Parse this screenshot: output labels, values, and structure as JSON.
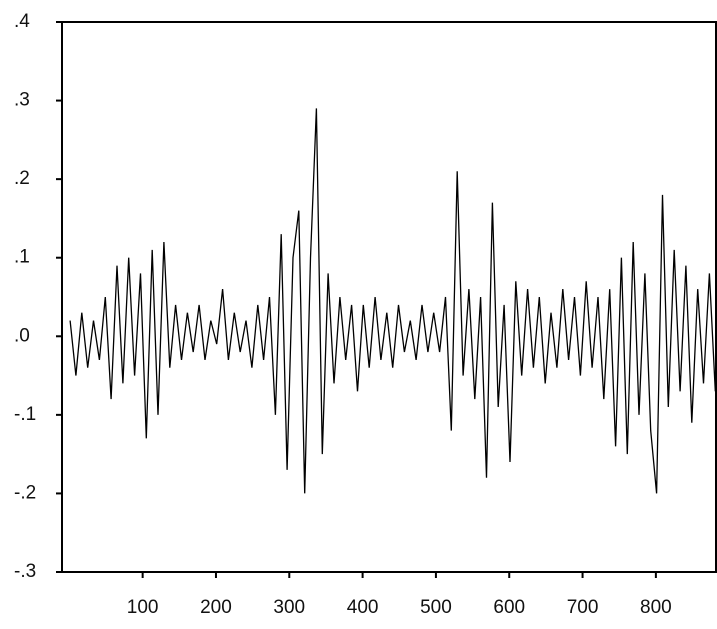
{
  "chart_data": {
    "type": "line",
    "x": [
      1,
      9,
      17,
      25,
      33,
      41,
      49,
      57,
      65,
      73,
      81,
      89,
      97,
      105,
      113,
      121,
      129,
      137,
      145,
      153,
      161,
      169,
      177,
      185,
      193,
      201,
      209,
      217,
      225,
      233,
      241,
      249,
      257,
      265,
      273,
      281,
      289,
      297,
      305,
      313,
      321,
      329,
      337,
      345,
      353,
      361,
      369,
      377,
      385,
      393,
      401,
      409,
      417,
      425,
      433,
      441,
      449,
      457,
      465,
      473,
      481,
      489,
      497,
      505,
      513,
      521,
      529,
      537,
      545,
      553,
      561,
      569,
      577,
      585,
      593,
      601,
      609,
      617,
      625,
      633,
      641,
      649,
      657,
      665,
      673,
      681,
      689,
      697,
      705,
      713,
      721,
      729,
      737,
      745,
      753,
      761,
      769,
      777,
      785,
      793,
      801,
      809,
      817,
      825,
      833,
      841,
      849,
      857,
      865,
      873,
      881
    ],
    "series": [
      {
        "color": "#000000",
        "values": [
          0.02,
          -0.05,
          0.03,
          -0.04,
          0.02,
          -0.03,
          0.05,
          -0.08,
          0.09,
          -0.06,
          0.1,
          -0.05,
          0.08,
          -0.13,
          0.11,
          -0.1,
          0.12,
          -0.04,
          0.04,
          -0.03,
          0.03,
          -0.02,
          0.04,
          -0.03,
          0.02,
          -0.01,
          0.06,
          -0.03,
          0.03,
          -0.02,
          0.02,
          -0.04,
          0.04,
          -0.03,
          0.05,
          -0.1,
          0.13,
          -0.17,
          0.1,
          0.16,
          -0.2,
          0.1,
          0.29,
          -0.15,
          0.08,
          -0.06,
          0.05,
          -0.03,
          0.04,
          -0.07,
          0.04,
          -0.04,
          0.05,
          -0.03,
          0.03,
          -0.04,
          0.04,
          -0.02,
          0.02,
          -0.03,
          0.04,
          -0.02,
          0.03,
          -0.02,
          0.05,
          -0.12,
          0.21,
          -0.05,
          0.06,
          -0.08,
          0.05,
          -0.18,
          0.17,
          -0.09,
          0.04,
          -0.16,
          0.07,
          -0.05,
          0.06,
          -0.04,
          0.05,
          -0.06,
          0.03,
          -0.04,
          0.06,
          -0.03,
          0.05,
          -0.05,
          0.07,
          -0.04,
          0.05,
          -0.08,
          0.06,
          -0.14,
          0.1,
          -0.15,
          0.12,
          -0.1,
          0.08,
          -0.12,
          -0.2,
          0.18,
          -0.09,
          0.11,
          -0.07,
          0.09,
          -0.11,
          0.06,
          -0.06,
          0.08,
          -0.07
        ]
      }
    ],
    "xlim": [
      -10,
      882
    ],
    "xticks": [
      100,
      200,
      300,
      400,
      500,
      600,
      700,
      800
    ],
    "ylim": [
      -0.3,
      0.4
    ],
    "yticks": [
      {
        "value": 0.4,
        "label": ".4"
      },
      {
        "value": 0.3,
        "label": ".3"
      },
      {
        "value": 0.2,
        "label": ".2"
      },
      {
        "value": 0.1,
        "label": ".1"
      },
      {
        "value": 0.0,
        "label": ".0"
      },
      {
        "value": -0.1,
        "label": "-.1"
      },
      {
        "value": -0.2,
        "label": "-.2"
      },
      {
        "value": -0.3,
        "label": "-.3"
      }
    ]
  }
}
